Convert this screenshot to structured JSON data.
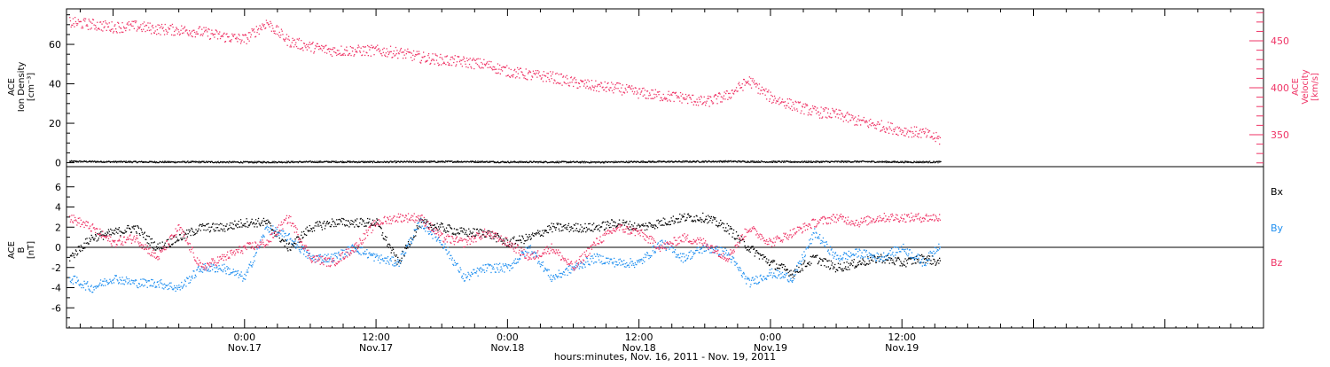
{
  "colors": {
    "black": "#000000",
    "red": "#ef3466",
    "blue": "#1f8ff0"
  },
  "x_axis": {
    "label": "hours:minutes, Nov. 16, 2011 - Nov. 19, 2011",
    "range_hours": [
      -16.25,
      93
    ],
    "ticks": [
      {
        "t": 0,
        "time": "0:00",
        "day": "Nov.17"
      },
      {
        "t": 12,
        "time": "12:00",
        "day": "Nov.17"
      },
      {
        "t": 24,
        "time": "0:00",
        "day": "Nov.18"
      },
      {
        "t": 36,
        "time": "12:00",
        "day": "Nov.18"
      },
      {
        "t": 48,
        "time": "0:00",
        "day": "Nov.19"
      },
      {
        "t": 60,
        "time": "12:00",
        "day": "Nov.19"
      }
    ]
  },
  "chart_data": [
    {
      "type": "scatter",
      "panel": "top",
      "ylabel_left": [
        "ACE",
        "Ion Density",
        "[cm⁻³]"
      ],
      "ylabel_right": [
        "ACE",
        "Velocity",
        "[km/s]"
      ],
      "ylim_left": [
        -2,
        78
      ],
      "ylim_right": [
        316,
        484
      ],
      "ticks_left": [
        0,
        20,
        40,
        60
      ],
      "ticks_right": [
        350,
        400,
        450
      ],
      "series": [
        {
          "axis": "left",
          "color": "#000000",
          "x": [
            -16,
            -12,
            -8,
            -4,
            0,
            4,
            8,
            12,
            16,
            20,
            24,
            28,
            32,
            36,
            40,
            44,
            48,
            52,
            56,
            60,
            63.5
          ],
          "y": [
            0.9,
            0.7,
            0.6,
            0.6,
            0.5,
            0.6,
            0.7,
            0.6,
            0.7,
            0.8,
            0.6,
            0.6,
            0.5,
            0.7,
            0.8,
            0.9,
            0.7,
            0.7,
            0.8,
            0.6,
            0.6
          ]
        },
        {
          "axis": "right",
          "color": "#ef3466",
          "x": [
            -16,
            -14,
            -12,
            -10,
            -8,
            -6,
            -4,
            -2,
            0,
            2,
            4,
            6,
            8,
            10,
            12,
            14,
            16,
            18,
            20,
            22,
            24,
            26,
            28,
            30,
            32,
            34,
            36,
            38,
            40,
            42,
            44,
            46,
            48,
            50,
            52,
            54,
            56,
            58,
            60,
            62,
            63.5
          ],
          "y": [
            470,
            468,
            465,
            466,
            463,
            462,
            460,
            455,
            452,
            470,
            450,
            444,
            440,
            440,
            440,
            438,
            433,
            430,
            428,
            425,
            418,
            414,
            412,
            406,
            402,
            400,
            395,
            392,
            390,
            385,
            392,
            408,
            390,
            382,
            375,
            372,
            365,
            360,
            355,
            352,
            345
          ]
        }
      ]
    },
    {
      "type": "scatter",
      "panel": "bottom",
      "ylabel": [
        "ACE",
        "B",
        "[nT]"
      ],
      "ylim": [
        -8,
        8
      ],
      "ticks": [
        -6,
        -4,
        -2,
        0,
        2,
        4,
        6
      ],
      "series": [
        {
          "name": "Bx",
          "color": "#000000",
          "x": [
            -16,
            -14,
            -12,
            -10,
            -8,
            -6,
            -4,
            -2,
            0,
            2,
            4,
            6,
            8,
            10,
            12,
            14,
            16,
            18,
            20,
            22,
            24,
            26,
            28,
            30,
            32,
            34,
            36,
            38,
            40,
            42,
            44,
            46,
            48,
            50,
            52,
            54,
            56,
            58,
            60,
            62,
            63.5
          ],
          "y": [
            -1.0,
            1.0,
            1.5,
            2.0,
            0.0,
            1.0,
            2.0,
            2.0,
            2.5,
            2.5,
            0.0,
            2.0,
            2.5,
            2.5,
            2.5,
            -1.5,
            2.5,
            2.0,
            1.5,
            1.5,
            0.5,
            1.0,
            2.0,
            2.0,
            2.0,
            2.5,
            2.0,
            2.5,
            3.0,
            3.0,
            2.0,
            0.0,
            -1.5,
            -2.5,
            -1.0,
            -2.0,
            -1.5,
            -1.0,
            -1.5,
            -1.0,
            -1.5
          ]
        },
        {
          "name": "By",
          "color": "#1f8ff0",
          "x": [
            -16,
            -14,
            -12,
            -10,
            -8,
            -6,
            -4,
            -2,
            0,
            2,
            4,
            6,
            8,
            10,
            12,
            14,
            16,
            18,
            20,
            22,
            24,
            26,
            28,
            30,
            32,
            34,
            36,
            38,
            40,
            42,
            44,
            46,
            48,
            50,
            52,
            54,
            56,
            58,
            60,
            62,
            63.5
          ],
          "y": [
            -3.0,
            -4.0,
            -3.0,
            -3.5,
            -3.5,
            -4.0,
            -2.0,
            -2.0,
            -3.0,
            2.0,
            1.0,
            -1.0,
            -1.0,
            0.0,
            -1.0,
            -1.5,
            2.5,
            0.5,
            -3.0,
            -2.0,
            -2.0,
            0.0,
            -3.0,
            -2.0,
            -1.0,
            -1.5,
            -1.5,
            0.5,
            -1.0,
            0.0,
            -0.5,
            -3.5,
            -2.5,
            -3.0,
            1.5,
            -1.0,
            -0.5,
            -1.0,
            0.0,
            -1.5,
            0.5
          ]
        },
        {
          "name": "Bz",
          "color": "#ef3466",
          "x": [
            -16,
            -14,
            -12,
            -10,
            -8,
            -6,
            -4,
            -2,
            0,
            2,
            4,
            6,
            8,
            10,
            12,
            14,
            16,
            18,
            20,
            22,
            24,
            26,
            28,
            30,
            32,
            34,
            36,
            38,
            40,
            42,
            44,
            46,
            48,
            50,
            52,
            54,
            56,
            58,
            60,
            62,
            63.5
          ],
          "y": [
            3.0,
            2.0,
            0.5,
            1.0,
            -1.0,
            2.0,
            -2.0,
            -1.0,
            0.0,
            0.5,
            3.0,
            -1.0,
            -1.5,
            0.0,
            2.5,
            3.0,
            3.0,
            1.0,
            0.5,
            1.5,
            0.5,
            -1.0,
            0.0,
            -2.0,
            0.5,
            2.0,
            1.5,
            0.0,
            1.0,
            0.5,
            -1.0,
            2.0,
            0.5,
            1.5,
            2.5,
            3.0,
            2.5,
            3.0,
            3.0,
            3.0,
            3.0
          ]
        }
      ]
    }
  ]
}
